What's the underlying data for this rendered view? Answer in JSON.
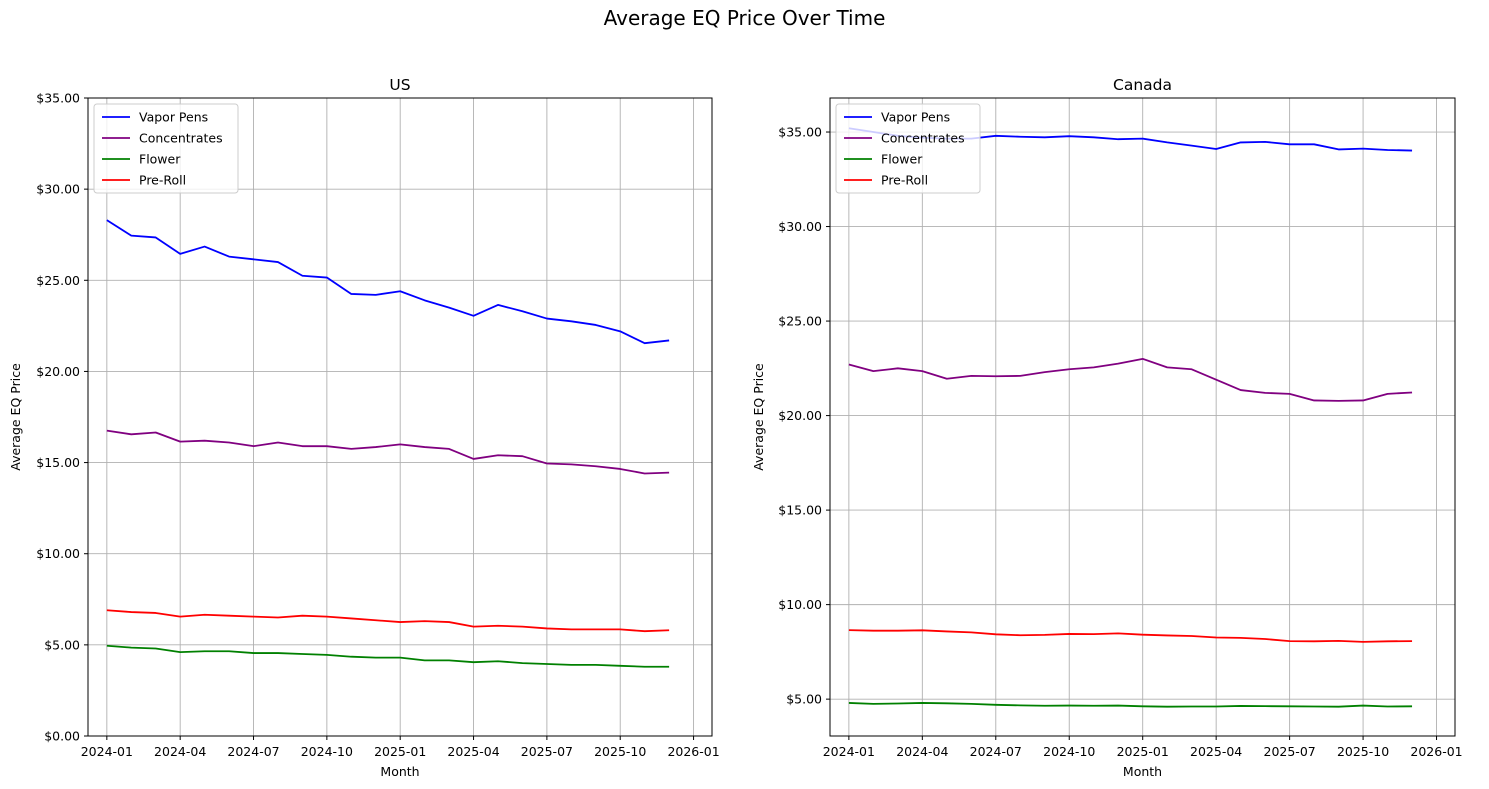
{
  "figure": {
    "title": "Average EQ Price Over Time",
    "colors": {
      "Vapor Pens": "#0000ff",
      "Concentrates": "#800080",
      "Flower": "#008000",
      "Pre-Roll": "#ff0000",
      "grid": "#b0b0b0"
    }
  },
  "chart_data": [
    {
      "type": "line",
      "title": "US",
      "xlabel": "Month",
      "ylabel": "Average EQ Price",
      "x": [
        "2024-01",
        "2024-02",
        "2024-03",
        "2024-04",
        "2024-05",
        "2024-06",
        "2024-07",
        "2024-08",
        "2024-09",
        "2024-10",
        "2024-11",
        "2024-12",
        "2025-01",
        "2025-02",
        "2025-03",
        "2025-04",
        "2025-05",
        "2025-06",
        "2025-07",
        "2025-08",
        "2025-09",
        "2025-10",
        "2025-11",
        "2025-12"
      ],
      "xticks": [
        "2024-01",
        "2024-04",
        "2024-07",
        "2024-10",
        "2025-01",
        "2025-04",
        "2025-07",
        "2025-10",
        "2026-01"
      ],
      "xlim": [
        "2023-12-08",
        "2026-01-24"
      ],
      "yticks": [
        0,
        5,
        10,
        15,
        20,
        25,
        30,
        35
      ],
      "ytick_labels": [
        "$0.00",
        "$5.00",
        "$10.00",
        "$15.00",
        "$20.00",
        "$25.00",
        "$30.00",
        "$35.00"
      ],
      "ylim": [
        0,
        35
      ],
      "grid": true,
      "legend_position": "top-left",
      "series": [
        {
          "name": "Vapor Pens",
          "values": [
            28.3,
            27.45,
            27.35,
            26.45,
            26.85,
            26.3,
            26.15,
            26.0,
            25.25,
            25.15,
            24.25,
            24.2,
            24.4,
            23.9,
            23.5,
            23.05,
            23.65,
            23.3,
            22.9,
            22.75,
            22.55,
            22.2,
            21.55,
            21.7
          ]
        },
        {
          "name": "Concentrates",
          "values": [
            16.75,
            16.55,
            16.65,
            16.15,
            16.2,
            16.1,
            15.9,
            16.1,
            15.9,
            15.9,
            15.75,
            15.85,
            16.0,
            15.85,
            15.75,
            15.2,
            15.4,
            15.35,
            14.95,
            14.9,
            14.8,
            14.65,
            14.4,
            14.45
          ]
        },
        {
          "name": "Flower",
          "values": [
            4.95,
            4.85,
            4.8,
            4.6,
            4.65,
            4.65,
            4.55,
            4.55,
            4.5,
            4.45,
            4.35,
            4.3,
            4.3,
            4.15,
            4.15,
            4.05,
            4.1,
            4.0,
            3.95,
            3.9,
            3.9,
            3.85,
            3.8,
            3.8
          ]
        },
        {
          "name": "Pre-Roll",
          "values": [
            6.9,
            6.8,
            6.75,
            6.55,
            6.65,
            6.6,
            6.55,
            6.5,
            6.6,
            6.55,
            6.45,
            6.35,
            6.25,
            6.3,
            6.25,
            6.0,
            6.05,
            6.0,
            5.9,
            5.85,
            5.85,
            5.85,
            5.75,
            5.8
          ]
        }
      ]
    },
    {
      "type": "line",
      "title": "Canada",
      "xlabel": "Month",
      "ylabel": "Average EQ Price",
      "x": [
        "2024-01",
        "2024-02",
        "2024-03",
        "2024-04",
        "2024-05",
        "2024-06",
        "2024-07",
        "2024-08",
        "2024-09",
        "2024-10",
        "2024-11",
        "2024-12",
        "2025-01",
        "2025-02",
        "2025-03",
        "2025-04",
        "2025-05",
        "2025-06",
        "2025-07",
        "2025-08",
        "2025-09",
        "2025-10",
        "2025-11",
        "2025-12"
      ],
      "xticks": [
        "2024-01",
        "2024-04",
        "2024-07",
        "2024-10",
        "2025-01",
        "2025-04",
        "2025-07",
        "2025-10",
        "2026-01"
      ],
      "xlim": [
        "2023-12-08",
        "2026-01-24"
      ],
      "yticks": [
        5,
        10,
        15,
        20,
        25,
        30,
        35
      ],
      "ytick_labels": [
        "$5.00",
        "$10.00",
        "$15.00",
        "$20.00",
        "$25.00",
        "$30.00",
        "$35.00"
      ],
      "ylim": [
        3.05,
        36.8
      ],
      "grid": true,
      "legend_position": "top-left",
      "series": [
        {
          "name": "Vapor Pens",
          "values": [
            35.2,
            35.0,
            34.8,
            34.7,
            34.65,
            34.65,
            34.8,
            34.75,
            34.72,
            34.78,
            34.72,
            34.62,
            34.65,
            34.45,
            34.28,
            34.1,
            34.45,
            34.48,
            34.35,
            34.35,
            34.08,
            34.12,
            34.05,
            34.02
          ]
        },
        {
          "name": "Concentrates",
          "values": [
            22.7,
            22.35,
            22.5,
            22.35,
            21.95,
            22.1,
            22.08,
            22.1,
            22.3,
            22.45,
            22.55,
            22.75,
            23.0,
            22.55,
            22.45,
            21.9,
            21.35,
            21.2,
            21.15,
            20.8,
            20.78,
            20.8,
            21.15,
            21.22
          ]
        },
        {
          "name": "Flower",
          "values": [
            4.8,
            4.75,
            4.77,
            4.8,
            4.78,
            4.75,
            4.7,
            4.67,
            4.65,
            4.66,
            4.65,
            4.66,
            4.62,
            4.6,
            4.61,
            4.61,
            4.64,
            4.63,
            4.62,
            4.61,
            4.6,
            4.66,
            4.61,
            4.62
          ]
        },
        {
          "name": "Pre-Roll",
          "values": [
            8.65,
            8.62,
            8.62,
            8.64,
            8.58,
            8.53,
            8.43,
            8.38,
            8.4,
            8.45,
            8.44,
            8.48,
            8.41,
            8.37,
            8.34,
            8.26,
            8.24,
            8.18,
            8.07,
            8.06,
            8.08,
            8.03,
            8.06,
            8.07
          ]
        }
      ]
    }
  ]
}
